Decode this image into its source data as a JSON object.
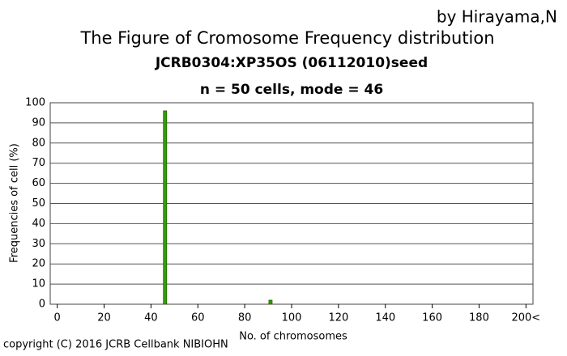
{
  "credit": "by Hirayama,N",
  "copyright": "copyright (C) 2016 JCRB Cellbank NIBIOHN",
  "chart_data": {
    "type": "bar",
    "title": "The Figure of Cromosome Frequency distribution",
    "subtitle": "JCRB0304:XP35OS (06112010)seed",
    "annotation": "n = 50 cells,  mode = 46",
    "x_label": "No. of chromosomes",
    "y_label": "Frequencies of cell (%)",
    "x": [
      46,
      91
    ],
    "values": [
      96,
      2
    ],
    "color": "#33a000",
    "xlim": [
      -3,
      203
    ],
    "xticks": [
      0,
      20,
      40,
      60,
      80,
      100,
      120,
      140,
      160,
      180,
      {
        "value": 200,
        "label": "200<"
      }
    ],
    "ylim": [
      0,
      100
    ],
    "yticks": [
      0,
      10,
      20,
      30,
      40,
      50,
      60,
      70,
      80,
      90,
      100
    ],
    "grid": true
  }
}
